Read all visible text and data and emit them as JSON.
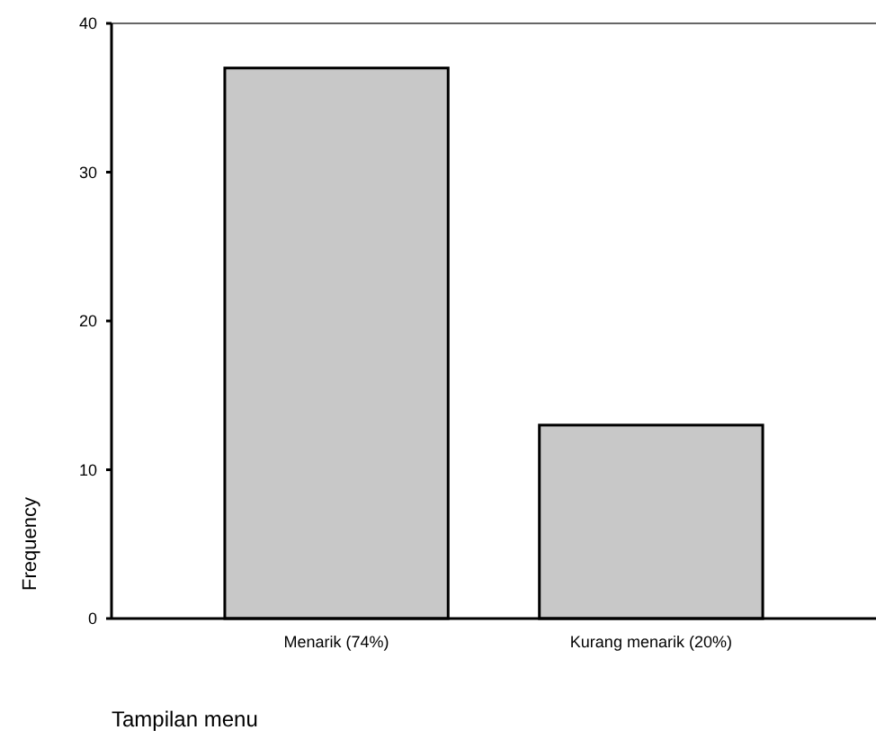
{
  "chart_data": {
    "type": "bar",
    "xlabel": "Tampilan menu",
    "ylabel": "Frequency",
    "categories": [
      "Menarik (74%)",
      "Kurang menarik (20%)"
    ],
    "values": [
      37,
      13
    ],
    "color": "#c8c8c8",
    "ylim": [
      0,
      40
    ],
    "yticks": [
      0,
      10,
      20,
      30,
      40
    ],
    "grid": false
  }
}
